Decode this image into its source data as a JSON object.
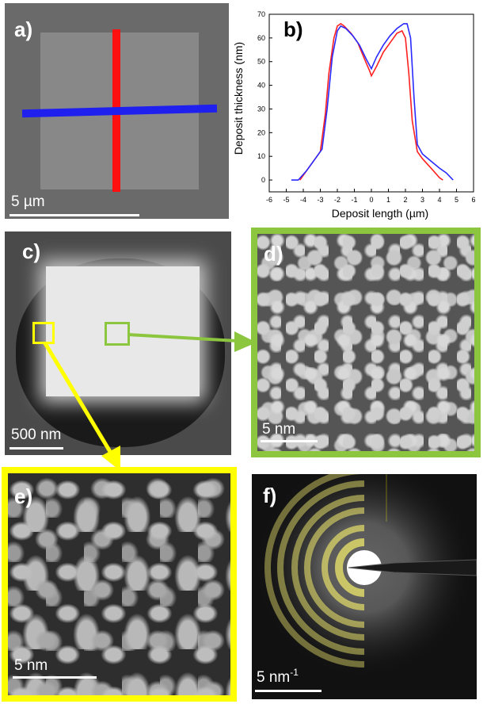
{
  "panels": {
    "a": {
      "label": "a)",
      "scale": "5 µm"
    },
    "b": {
      "label": "b)"
    },
    "c": {
      "label": "c)",
      "scale": "500 nm"
    },
    "d": {
      "label": "d)",
      "scale": "5 nm"
    },
    "e": {
      "label": "e)",
      "scale": "5 nm"
    },
    "f": {
      "label": "f)",
      "scale": "5 nm",
      "scale_sup": "-1"
    }
  },
  "colors": {
    "red_profile": "#ff2020",
    "blue_profile": "#2a2aff",
    "green_frame": "#8cc63f",
    "yellow_frame": "#ffff00"
  },
  "chart_data": {
    "type": "line",
    "xlabel": "Deposit length (µm)",
    "ylabel": "Deposit thickness (nm)",
    "xlim": [
      -6,
      6
    ],
    "ylim": [
      -5,
      70
    ],
    "xticks": [
      -6,
      -5,
      -4,
      -3,
      -2,
      -1,
      0,
      1,
      2,
      3,
      4,
      5,
      6
    ],
    "yticks": [
      0,
      10,
      20,
      30,
      40,
      50,
      60,
      70
    ],
    "series": [
      {
        "color": "#ff2020",
        "x": [
          -4.2,
          -3.8,
          -3.4,
          -3.0,
          -2.7,
          -2.5,
          -2.2,
          -2.0,
          -1.8,
          -1.6,
          -1.2,
          -0.8,
          -0.4,
          -0.1,
          0.0,
          0.3,
          0.7,
          1.1,
          1.5,
          1.8,
          2.0,
          2.2,
          2.4,
          2.7,
          3.0,
          3.5,
          4.0,
          4.2
        ],
        "y": [
          0,
          4,
          8,
          12,
          28,
          45,
          60,
          65,
          66,
          65,
          62,
          58,
          51,
          46,
          44,
          48,
          54,
          58,
          62,
          63,
          60,
          45,
          25,
          12,
          9,
          5,
          1,
          0
        ]
      },
      {
        "color": "#2a2aff",
        "x": [
          -4.7,
          -4.3,
          -3.8,
          -3.3,
          -2.9,
          -2.6,
          -2.3,
          -2.0,
          -1.8,
          -1.5,
          -1.1,
          -0.7,
          -0.3,
          0.0,
          0.3,
          0.7,
          1.1,
          1.5,
          1.9,
          2.1,
          2.3,
          2.5,
          2.7,
          3.0,
          3.5,
          4.0,
          4.4,
          4.8
        ],
        "y": [
          0,
          0,
          4,
          9,
          13,
          30,
          52,
          63,
          65,
          64,
          61,
          57,
          51,
          47,
          52,
          57,
          61,
          64,
          66,
          66,
          60,
          35,
          15,
          11,
          8,
          5,
          3,
          0
        ]
      }
    ]
  }
}
